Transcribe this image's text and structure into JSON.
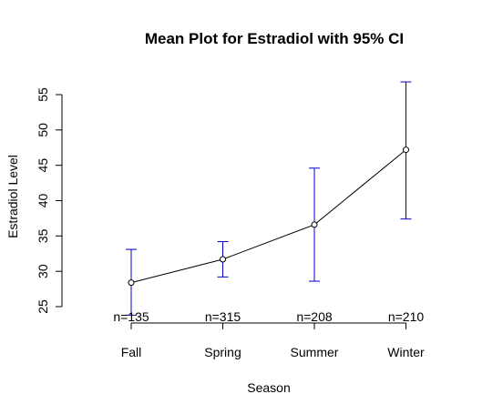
{
  "chart_data": {
    "type": "line",
    "title": "Mean Plot for Estradiol with 95% CI",
    "xlabel": "Season",
    "ylabel": "Estradiol Level",
    "categories": [
      "Fall",
      "Spring",
      "Summer",
      "Winter"
    ],
    "series": [
      {
        "means": [
          28.4,
          31.7,
          36.6,
          47.2
        ],
        "ci_lower": [
          23.8,
          29.2,
          28.6,
          37.4
        ],
        "ci_upper": [
          33.1,
          34.2,
          44.6,
          56.8
        ]
      }
    ],
    "n_labels": [
      "n=135",
      "n=315",
      "n=208",
      "n=210"
    ],
    "yticks": [
      25,
      30,
      35,
      40,
      45,
      50,
      55
    ],
    "ylim": [
      25,
      55
    ],
    "colors": {
      "ci": "#0000cc",
      "line": "#000000"
    }
  }
}
